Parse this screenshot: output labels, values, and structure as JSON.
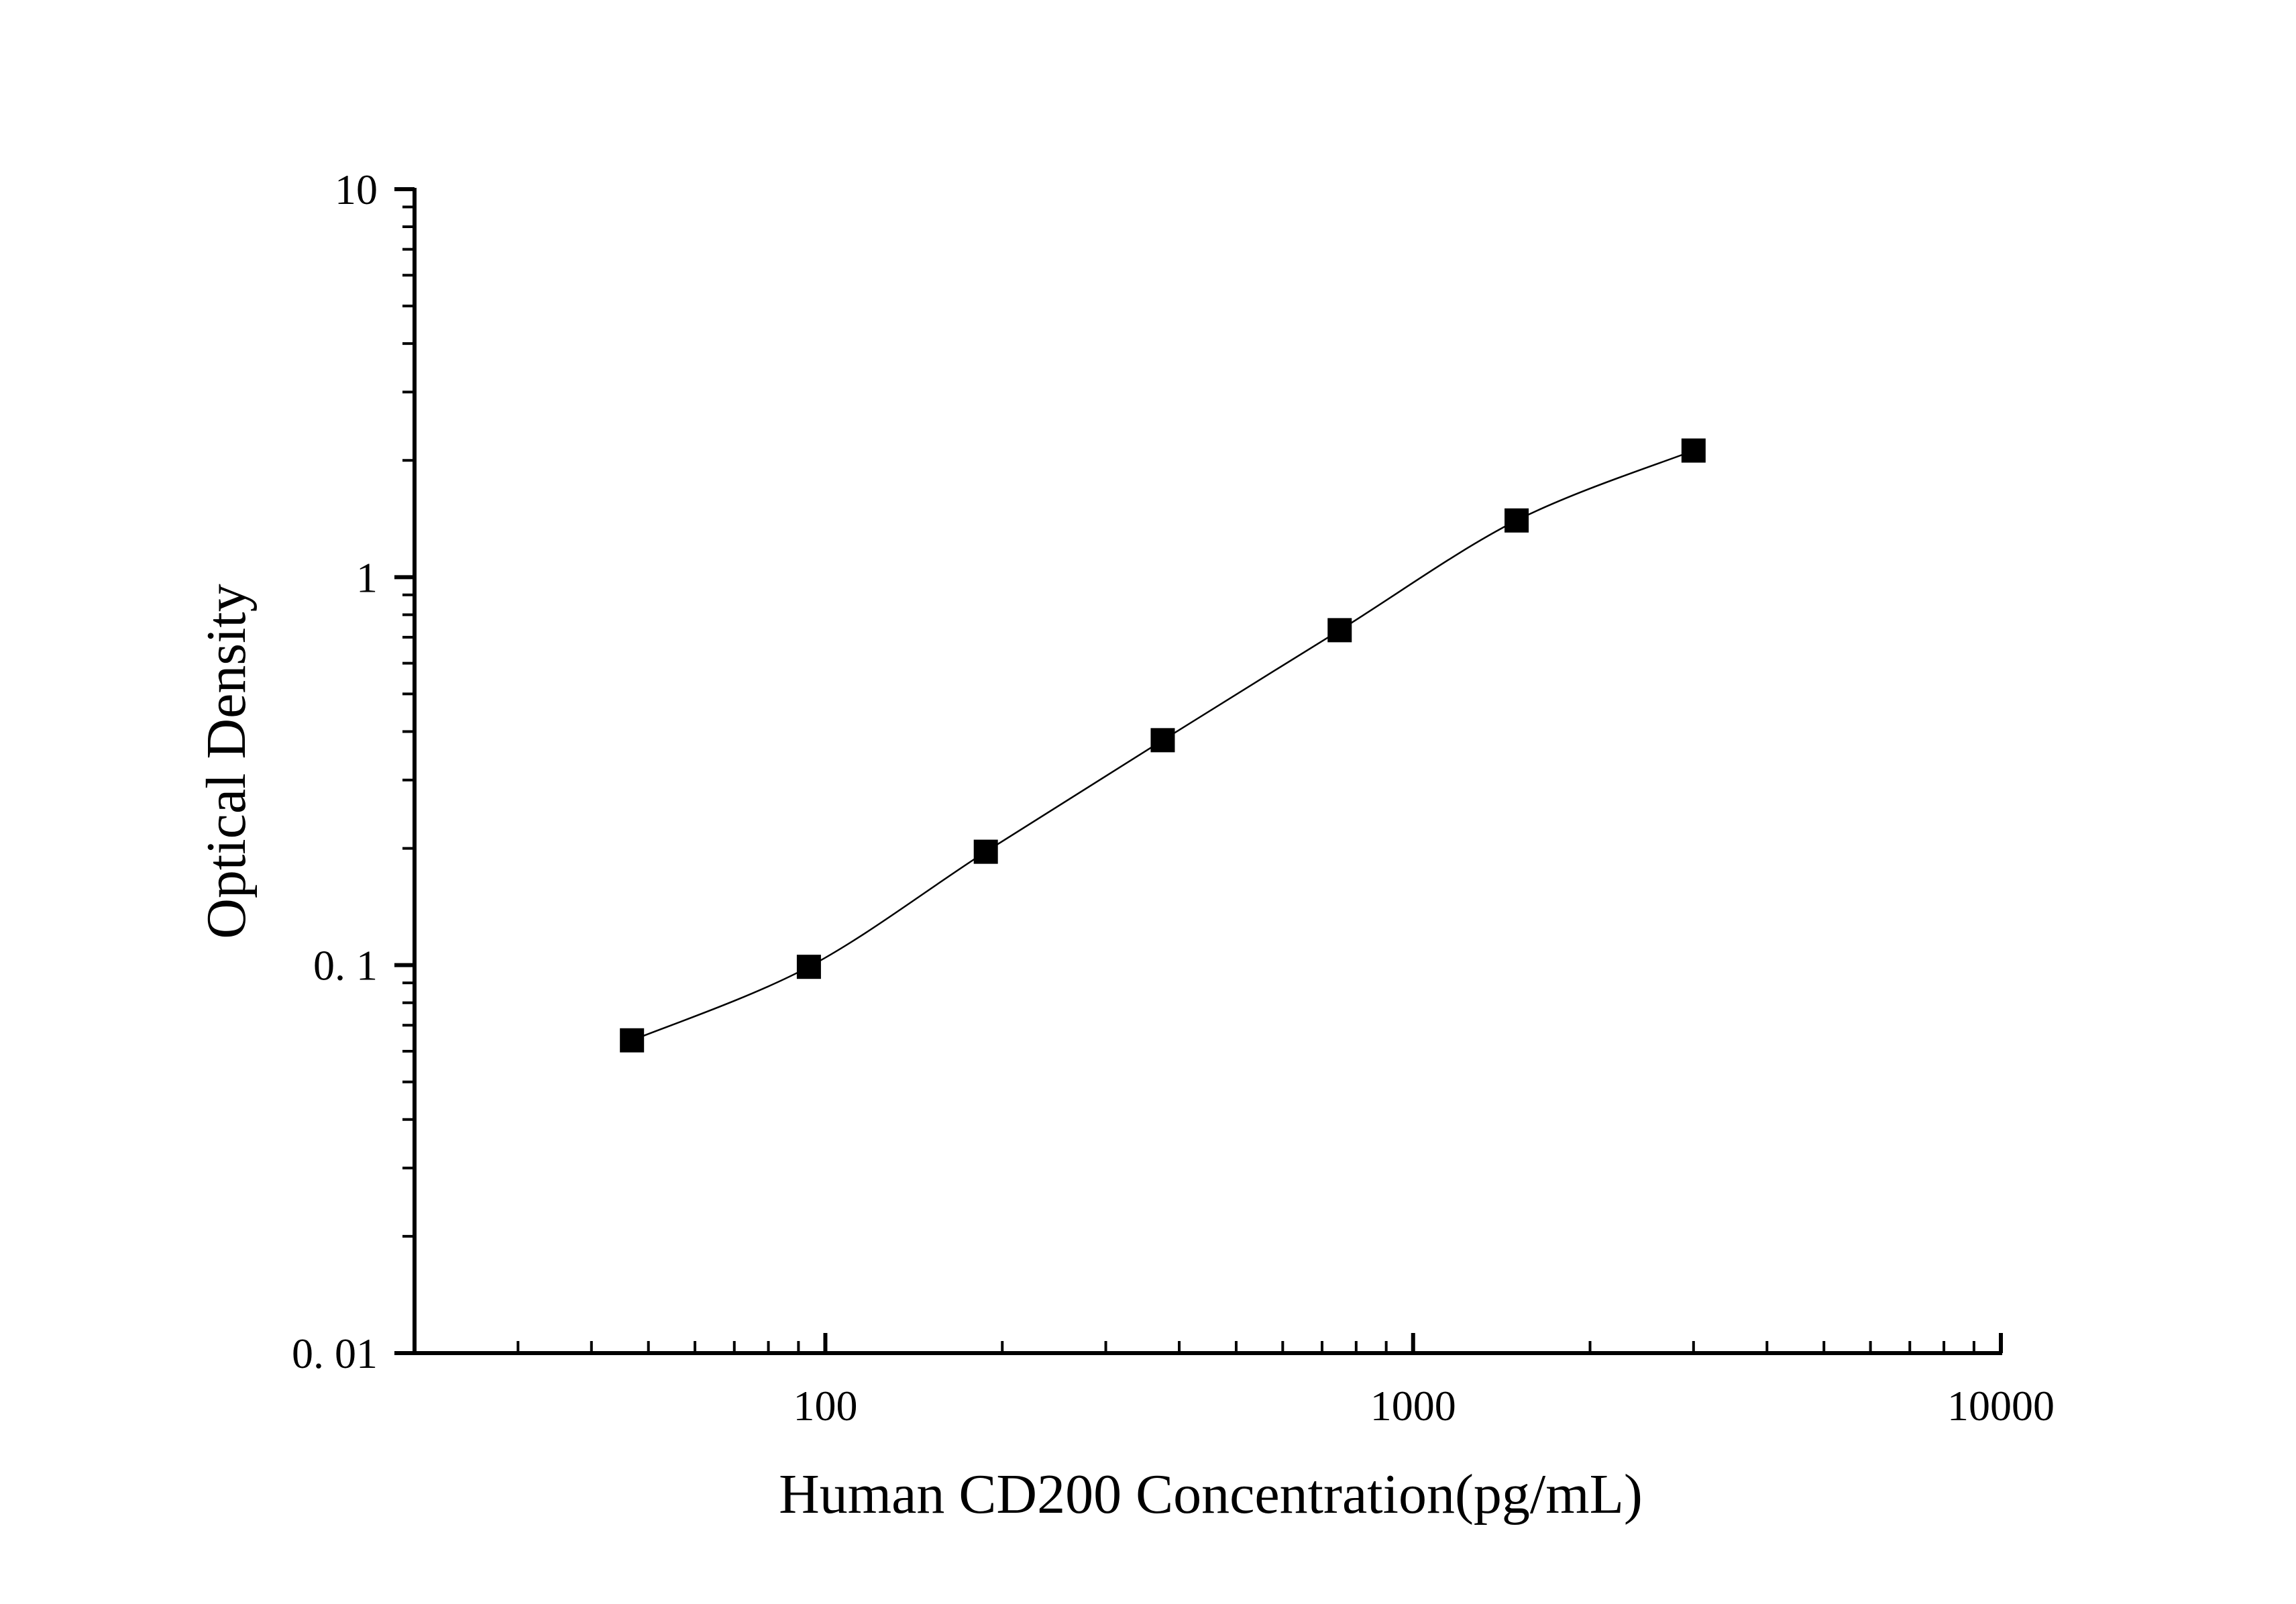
{
  "chart_data": {
    "type": "line",
    "xlabel": "Human CD200 Concentration(pg/mL)",
    "ylabel": "Optical Density",
    "x_scale": "log",
    "y_scale": "log",
    "xlim": [
      20,
      10000
    ],
    "ylim": [
      0.01,
      10
    ],
    "x_ticks": [
      {
        "value": 100,
        "label": "100"
      },
      {
        "value": 1000,
        "label": "1000"
      },
      {
        "value": 10000,
        "label": "10000"
      }
    ],
    "y_ticks": [
      {
        "value": 0.01,
        "label": "0. 01"
      },
      {
        "value": 0.1,
        "label": "0. 1"
      },
      {
        "value": 1,
        "label": "1"
      },
      {
        "value": 10,
        "label": "10"
      }
    ],
    "grid": false,
    "marker": "square",
    "colors": {
      "line": "#000000",
      "marker": "#000000",
      "axis": "#000000"
    },
    "series": [
      {
        "x": [
          46.88,
          93.75,
          187.5,
          375,
          750,
          1500,
          3000
        ],
        "y": [
          0.064,
          0.099,
          0.196,
          0.38,
          0.73,
          1.4,
          2.12
        ]
      }
    ]
  }
}
